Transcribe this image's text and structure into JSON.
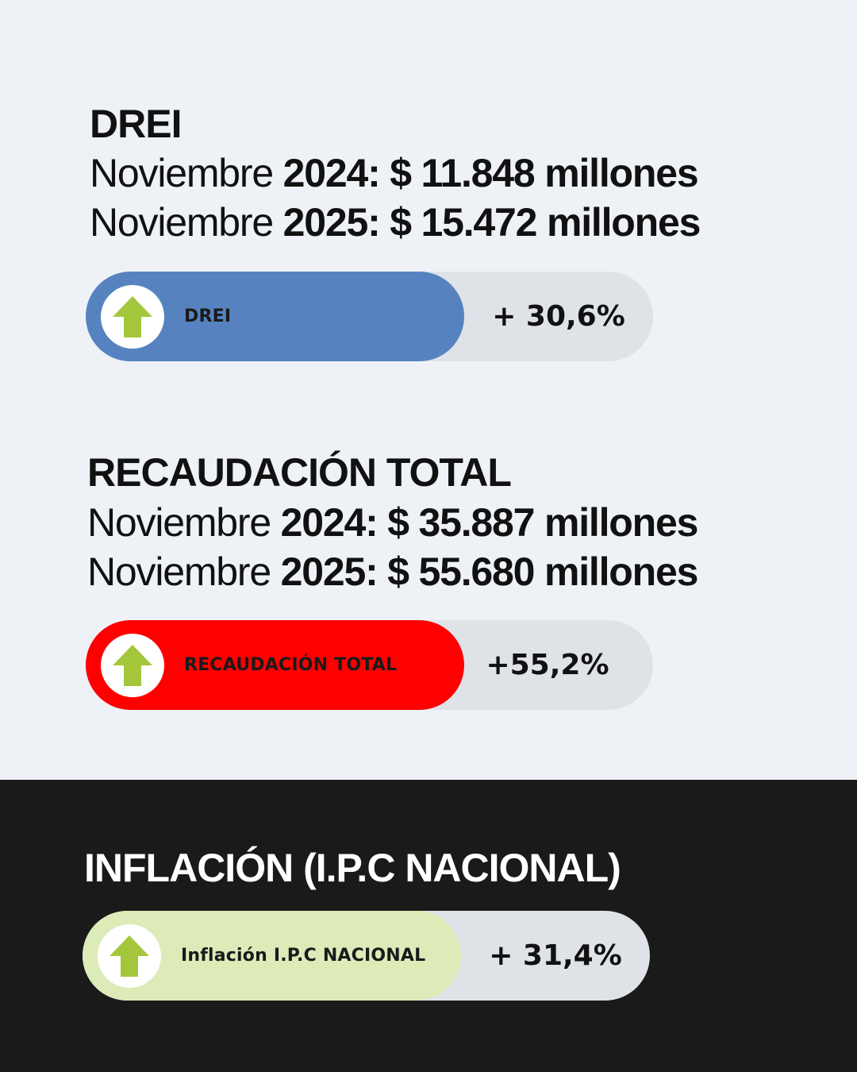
{
  "colors": {
    "background_light": "#eef2f7",
    "background_dark": "#1a1a1a",
    "drei_fill": "#5683c0",
    "recaudacion_fill": "#ff0000",
    "inflacion_fill": "#dcebb8",
    "track": "#dfe3e8",
    "arrow": "#a3c63b"
  },
  "drei": {
    "title": "DREI",
    "rows": [
      {
        "prefix": "Noviembre",
        "value": "2024: $ 11.848 millones"
      },
      {
        "prefix": "Noviembre",
        "value": "2025: $ 15.472 millones"
      }
    ],
    "badge": {
      "icon": "arrow-up-icon",
      "label": "DREI",
      "change": "+ 30,6%"
    }
  },
  "recaudacion": {
    "title": "RECAUDACIÓN TOTAL",
    "rows": [
      {
        "prefix": "Noviembre",
        "value": "2024: $ 35.887 millones"
      },
      {
        "prefix": "Noviembre",
        "value": "2025: $ 55.680 millones"
      }
    ],
    "badge": {
      "icon": "arrow-up-icon",
      "label": "RECAUDACIÓN TOTAL",
      "change": "+55,2%"
    }
  },
  "inflacion": {
    "title": "INFLACIÓN (I.P.C NACIONAL)",
    "badge": {
      "icon": "arrow-up-icon",
      "label": "Inflación I.P.C NACIONAL",
      "change": "+ 31,4%"
    }
  }
}
